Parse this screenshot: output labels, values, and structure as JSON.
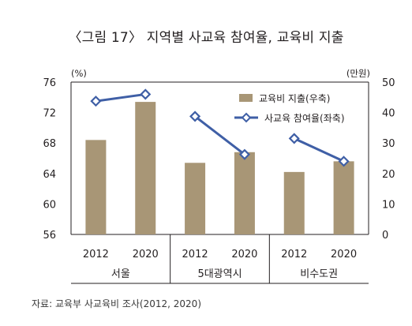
{
  "title": "〈그림 17〉 지역별 사교육 참여율, 교육비 지출",
  "source": "자료: 교육부 사교육비 조사(2012, 2020)",
  "colors": {
    "bar": "#a89676",
    "line": "#3f5fa6",
    "axis": "#231f20"
  },
  "chart_data": {
    "type": "bar+line",
    "x_labels": [
      "2012",
      "2020",
      "2012",
      "2020",
      "2012",
      "2020"
    ],
    "groups": [
      "서울",
      "5대광역시",
      "비수도권"
    ],
    "left_axis": {
      "unit": "(%)",
      "min": 56,
      "max": 76,
      "ticks": [
        "76",
        "72",
        "68",
        "64",
        "60",
        "56"
      ]
    },
    "right_axis": {
      "unit": "(만원)",
      "min": 0,
      "max": 50,
      "ticks": [
        "50",
        "40",
        "30",
        "20",
        "10",
        "0"
      ]
    },
    "series": [
      {
        "name": "교육비 지출(우축)",
        "kind": "bar",
        "axis": "right",
        "values": [
          31,
          43.5,
          23.5,
          27,
          20.5,
          24
        ]
      },
      {
        "name": "사교육 참여율(좌축)",
        "kind": "line",
        "axis": "left",
        "values": [
          73.5,
          74.4,
          71.5,
          66.5,
          68.6,
          65.6
        ]
      }
    ],
    "legend_position": "top-right",
    "grid": false
  }
}
